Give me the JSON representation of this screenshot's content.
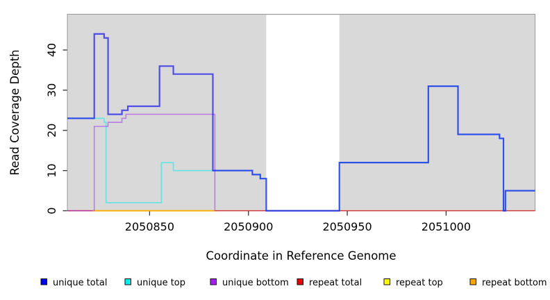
{
  "chart_data": {
    "type": "line",
    "subtype": "step-coverage-plot",
    "title": "",
    "xlabel": "Coordinate in Reference Genome",
    "ylabel": "Read Coverage Depth",
    "xlim": [
      2050808.4,
      2051045.0
    ],
    "ylim": [
      0,
      48.9
    ],
    "x_ticks": [
      2050850,
      2050900,
      2050950,
      2051000
    ],
    "y_ticks": [
      0,
      10,
      20,
      30,
      40
    ],
    "grid": false,
    "panel_bg": "#D9D9D9",
    "panel_border_color": "#999999",
    "tick_color": "#333333",
    "no_data_region": [
      2050909,
      2050946
    ],
    "no_data_region_color": "#FFFFFF",
    "legend_position": "bottom",
    "series": [
      {
        "name": "repeat total",
        "color": "#EE0000",
        "line_opacity": 0.66,
        "line_width": 1.5,
        "points": [
          [
            2050808.4,
            0
          ],
          [
            2051045,
            0
          ]
        ]
      },
      {
        "name": "repeat top",
        "color": "#FFFF00",
        "line_opacity": 1.0,
        "line_width": 1.4,
        "points": [
          [
            2050821,
            0
          ],
          [
            2050883,
            0
          ]
        ]
      },
      {
        "name": "repeat bottom",
        "color": "#FFA500",
        "line_opacity": 0.95,
        "line_width": 1.8,
        "points": [
          [
            2050821,
            0
          ],
          [
            2050883,
            0
          ]
        ]
      },
      {
        "name": "unique top",
        "color": "#00EEEE",
        "line_opacity": 0.5,
        "line_width": 1.8,
        "points": [
          [
            2050808.4,
            23
          ],
          [
            2050827,
            23
          ],
          [
            2050827,
            22
          ],
          [
            2050828,
            22
          ],
          [
            2050828,
            2
          ],
          [
            2050856,
            2
          ],
          [
            2050856,
            12
          ],
          [
            2050862,
            12
          ],
          [
            2050862,
            10
          ],
          [
            2050902,
            10
          ],
          [
            2050902,
            9
          ],
          [
            2050906,
            9
          ],
          [
            2050906,
            8
          ],
          [
            2050909,
            8
          ],
          [
            2050909,
            0
          ],
          [
            2050946,
            0
          ],
          [
            2050946,
            12
          ],
          [
            2050991,
            12
          ],
          [
            2050991,
            31
          ],
          [
            2051006,
            31
          ],
          [
            2051006,
            19
          ],
          [
            2051027,
            19
          ],
          [
            2051027,
            18
          ],
          [
            2051029,
            18
          ],
          [
            2051029,
            0
          ],
          [
            2051030,
            0
          ],
          [
            2051030,
            5
          ],
          [
            2051045,
            5
          ]
        ]
      },
      {
        "name": "unique bottom",
        "color": "#A020F0",
        "line_opacity": 0.5,
        "line_width": 1.6,
        "points": [
          [
            2050808.4,
            0
          ],
          [
            2050822,
            0
          ],
          [
            2050822,
            21
          ],
          [
            2050829,
            21
          ],
          [
            2050829,
            22
          ],
          [
            2050836,
            22
          ],
          [
            2050836,
            23
          ],
          [
            2050838,
            23
          ],
          [
            2050838,
            24
          ],
          [
            2050883,
            24
          ],
          [
            2050883,
            0
          ]
        ]
      },
      {
        "name": "unique total",
        "color": "#0000EE",
        "line_opacity": 0.64,
        "line_width": 2.2,
        "points": [
          [
            2050808.4,
            23
          ],
          [
            2050822,
            23
          ],
          [
            2050822,
            44
          ],
          [
            2050827,
            44
          ],
          [
            2050827,
            43
          ],
          [
            2050829,
            43
          ],
          [
            2050829,
            24
          ],
          [
            2050836,
            24
          ],
          [
            2050836,
            25
          ],
          [
            2050839,
            25
          ],
          [
            2050839,
            26
          ],
          [
            2050855,
            26
          ],
          [
            2050855,
            36
          ],
          [
            2050862,
            36
          ],
          [
            2050862,
            34
          ],
          [
            2050882,
            34
          ],
          [
            2050882,
            10
          ],
          [
            2050902,
            10
          ],
          [
            2050902,
            9
          ],
          [
            2050906,
            9
          ],
          [
            2050906,
            8
          ],
          [
            2050909,
            8
          ],
          [
            2050909,
            0
          ],
          [
            2050946,
            0
          ],
          [
            2050946,
            12
          ],
          [
            2050991,
            12
          ],
          [
            2050991,
            31
          ],
          [
            2051006,
            31
          ],
          [
            2051006,
            19
          ],
          [
            2051027,
            19
          ],
          [
            2051027,
            18
          ],
          [
            2051029,
            18
          ],
          [
            2051029,
            0
          ],
          [
            2051030,
            0
          ],
          [
            2051030,
            5
          ],
          [
            2051045,
            5
          ]
        ]
      }
    ],
    "legend": [
      {
        "label": "unique total",
        "color": "#0000EE"
      },
      {
        "label": "unique top",
        "color": "#00EEEE"
      },
      {
        "label": "unique bottom",
        "color": "#A020F0"
      },
      {
        "label": "repeat total",
        "color": "#EE0000"
      },
      {
        "label": "repeat top",
        "color": "#FFFF00"
      },
      {
        "label": "repeat bottom",
        "color": "#FFA500"
      }
    ]
  }
}
